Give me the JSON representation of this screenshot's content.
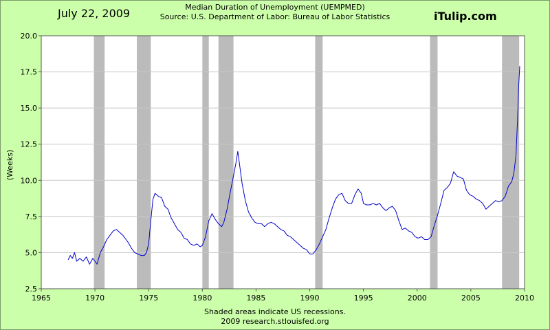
{
  "header": {
    "date": "July 22, 2009",
    "brand": "iTulip.com"
  },
  "footer": {
    "note": "Shaded areas indicate US recessions.",
    "source": "2009 research.stlouisfed.org"
  },
  "colors": {
    "background": "#ccffaa",
    "plot_background": "#ffffff",
    "series": "#0000cc",
    "recession_band": "#bbbbbb",
    "grid": "#c8c8c8"
  },
  "chart_data": {
    "type": "line",
    "title": "Median Duration of Unemployment (UEMPMED)",
    "subtitle": "Source: U.S. Department of Labor: Bureau of Labor Statistics",
    "xlabel": "",
    "ylabel": "(Weeks)",
    "xlim": [
      1965,
      2010
    ],
    "ylim": [
      2.5,
      20.0
    ],
    "x_ticks": [
      "1965",
      "1970",
      "1975",
      "1980",
      "1985",
      "1990",
      "1995",
      "2000",
      "2005",
      "2010"
    ],
    "y_ticks": [
      "2.5",
      "5.0",
      "7.5",
      "10.0",
      "12.5",
      "15.0",
      "17.5",
      "20.0"
    ],
    "grid": "horizontal",
    "recessions": [
      [
        1969.9,
        1970.9
      ],
      [
        1973.9,
        1975.2
      ],
      [
        1980.0,
        1980.6
      ],
      [
        1981.5,
        1982.9
      ],
      [
        1990.5,
        1991.2
      ],
      [
        2001.2,
        2001.9
      ],
      [
        2007.9,
        2009.5
      ]
    ],
    "series": [
      {
        "values": [
          [
            1967.5,
            4.5
          ],
          [
            1967.7,
            4.8
          ],
          [
            1967.9,
            4.6
          ],
          [
            1968.1,
            5.0
          ],
          [
            1968.3,
            4.4
          ],
          [
            1968.6,
            4.6
          ],
          [
            1968.9,
            4.4
          ],
          [
            1969.2,
            4.7
          ],
          [
            1969.5,
            4.2
          ],
          [
            1969.8,
            4.6
          ],
          [
            1970.0,
            4.4
          ],
          [
            1970.2,
            4.2
          ],
          [
            1970.5,
            5.0
          ],
          [
            1970.8,
            5.4
          ],
          [
            1971.1,
            5.9
          ],
          [
            1971.4,
            6.2
          ],
          [
            1971.7,
            6.5
          ],
          [
            1972.0,
            6.6
          ],
          [
            1972.3,
            6.4
          ],
          [
            1972.6,
            6.2
          ],
          [
            1972.9,
            5.9
          ],
          [
            1973.1,
            5.7
          ],
          [
            1973.4,
            5.3
          ],
          [
            1973.7,
            5.0
          ],
          [
            1974.0,
            4.9
          ],
          [
            1974.3,
            4.8
          ],
          [
            1974.6,
            4.8
          ],
          [
            1974.8,
            5.0
          ],
          [
            1975.0,
            5.6
          ],
          [
            1975.2,
            7.2
          ],
          [
            1975.4,
            8.7
          ],
          [
            1975.6,
            9.1
          ],
          [
            1975.9,
            8.9
          ],
          [
            1976.2,
            8.8
          ],
          [
            1976.5,
            8.2
          ],
          [
            1976.8,
            8.0
          ],
          [
            1977.1,
            7.4
          ],
          [
            1977.4,
            7.0
          ],
          [
            1977.7,
            6.6
          ],
          [
            1978.0,
            6.4
          ],
          [
            1978.3,
            6.0
          ],
          [
            1978.6,
            5.9
          ],
          [
            1978.9,
            5.6
          ],
          [
            1979.2,
            5.5
          ],
          [
            1979.5,
            5.6
          ],
          [
            1979.8,
            5.4
          ],
          [
            1980.0,
            5.5
          ],
          [
            1980.3,
            6.1
          ],
          [
            1980.6,
            7.2
          ],
          [
            1980.9,
            7.7
          ],
          [
            1981.2,
            7.3
          ],
          [
            1981.5,
            7.0
          ],
          [
            1981.8,
            6.8
          ],
          [
            1982.0,
            7.1
          ],
          [
            1982.3,
            8.0
          ],
          [
            1982.6,
            9.2
          ],
          [
            1982.9,
            10.3
          ],
          [
            1983.1,
            11.1
          ],
          [
            1983.3,
            12.0
          ],
          [
            1983.5,
            10.9
          ],
          [
            1983.7,
            9.8
          ],
          [
            1984.0,
            8.6
          ],
          [
            1984.3,
            7.8
          ],
          [
            1984.6,
            7.4
          ],
          [
            1984.9,
            7.1
          ],
          [
            1985.2,
            7.0
          ],
          [
            1985.5,
            7.0
          ],
          [
            1985.8,
            6.8
          ],
          [
            1986.1,
            7.0
          ],
          [
            1986.4,
            7.1
          ],
          [
            1986.7,
            7.0
          ],
          [
            1987.0,
            6.8
          ],
          [
            1987.3,
            6.6
          ],
          [
            1987.6,
            6.5
          ],
          [
            1987.9,
            6.2
          ],
          [
            1988.2,
            6.1
          ],
          [
            1988.5,
            5.9
          ],
          [
            1988.8,
            5.7
          ],
          [
            1989.1,
            5.5
          ],
          [
            1989.4,
            5.3
          ],
          [
            1989.7,
            5.2
          ],
          [
            1990.0,
            4.9
          ],
          [
            1990.3,
            4.9
          ],
          [
            1990.6,
            5.2
          ],
          [
            1990.9,
            5.6
          ],
          [
            1991.2,
            6.1
          ],
          [
            1991.5,
            6.6
          ],
          [
            1991.8,
            7.4
          ],
          [
            1992.1,
            8.1
          ],
          [
            1992.4,
            8.7
          ],
          [
            1992.7,
            9.0
          ],
          [
            1993.0,
            9.1
          ],
          [
            1993.3,
            8.6
          ],
          [
            1993.6,
            8.4
          ],
          [
            1993.9,
            8.4
          ],
          [
            1994.2,
            9.0
          ],
          [
            1994.5,
            9.4
          ],
          [
            1994.8,
            9.1
          ],
          [
            1995.0,
            8.4
          ],
          [
            1995.3,
            8.3
          ],
          [
            1995.6,
            8.3
          ],
          [
            1995.9,
            8.4
          ],
          [
            1996.2,
            8.3
          ],
          [
            1996.5,
            8.4
          ],
          [
            1996.8,
            8.1
          ],
          [
            1997.1,
            7.9
          ],
          [
            1997.4,
            8.1
          ],
          [
            1997.7,
            8.2
          ],
          [
            1998.0,
            7.9
          ],
          [
            1998.3,
            7.2
          ],
          [
            1998.6,
            6.6
          ],
          [
            1998.9,
            6.7
          ],
          [
            1999.2,
            6.5
          ],
          [
            1999.5,
            6.4
          ],
          [
            1999.8,
            6.1
          ],
          [
            2000.1,
            6.0
          ],
          [
            2000.4,
            6.1
          ],
          [
            2000.7,
            5.9
          ],
          [
            2001.0,
            5.9
          ],
          [
            2001.3,
            6.1
          ],
          [
            2001.6,
            6.9
          ],
          [
            2001.9,
            7.6
          ],
          [
            2002.2,
            8.4
          ],
          [
            2002.5,
            9.3
          ],
          [
            2002.8,
            9.5
          ],
          [
            2003.1,
            9.8
          ],
          [
            2003.4,
            10.6
          ],
          [
            2003.7,
            10.3
          ],
          [
            2004.0,
            10.2
          ],
          [
            2004.3,
            10.1
          ],
          [
            2004.6,
            9.3
          ],
          [
            2004.9,
            9.0
          ],
          [
            2005.2,
            8.9
          ],
          [
            2005.5,
            8.7
          ],
          [
            2005.8,
            8.6
          ],
          [
            2006.1,
            8.4
          ],
          [
            2006.4,
            8.0
          ],
          [
            2006.7,
            8.2
          ],
          [
            2007.0,
            8.4
          ],
          [
            2007.3,
            8.6
          ],
          [
            2007.6,
            8.5
          ],
          [
            2007.9,
            8.6
          ],
          [
            2008.2,
            8.9
          ],
          [
            2008.5,
            9.6
          ],
          [
            2008.8,
            9.9
          ],
          [
            2009.0,
            10.5
          ],
          [
            2009.2,
            11.7
          ],
          [
            2009.35,
            14.2
          ],
          [
            2009.45,
            16.5
          ],
          [
            2009.55,
            17.9
          ]
        ]
      }
    ]
  }
}
